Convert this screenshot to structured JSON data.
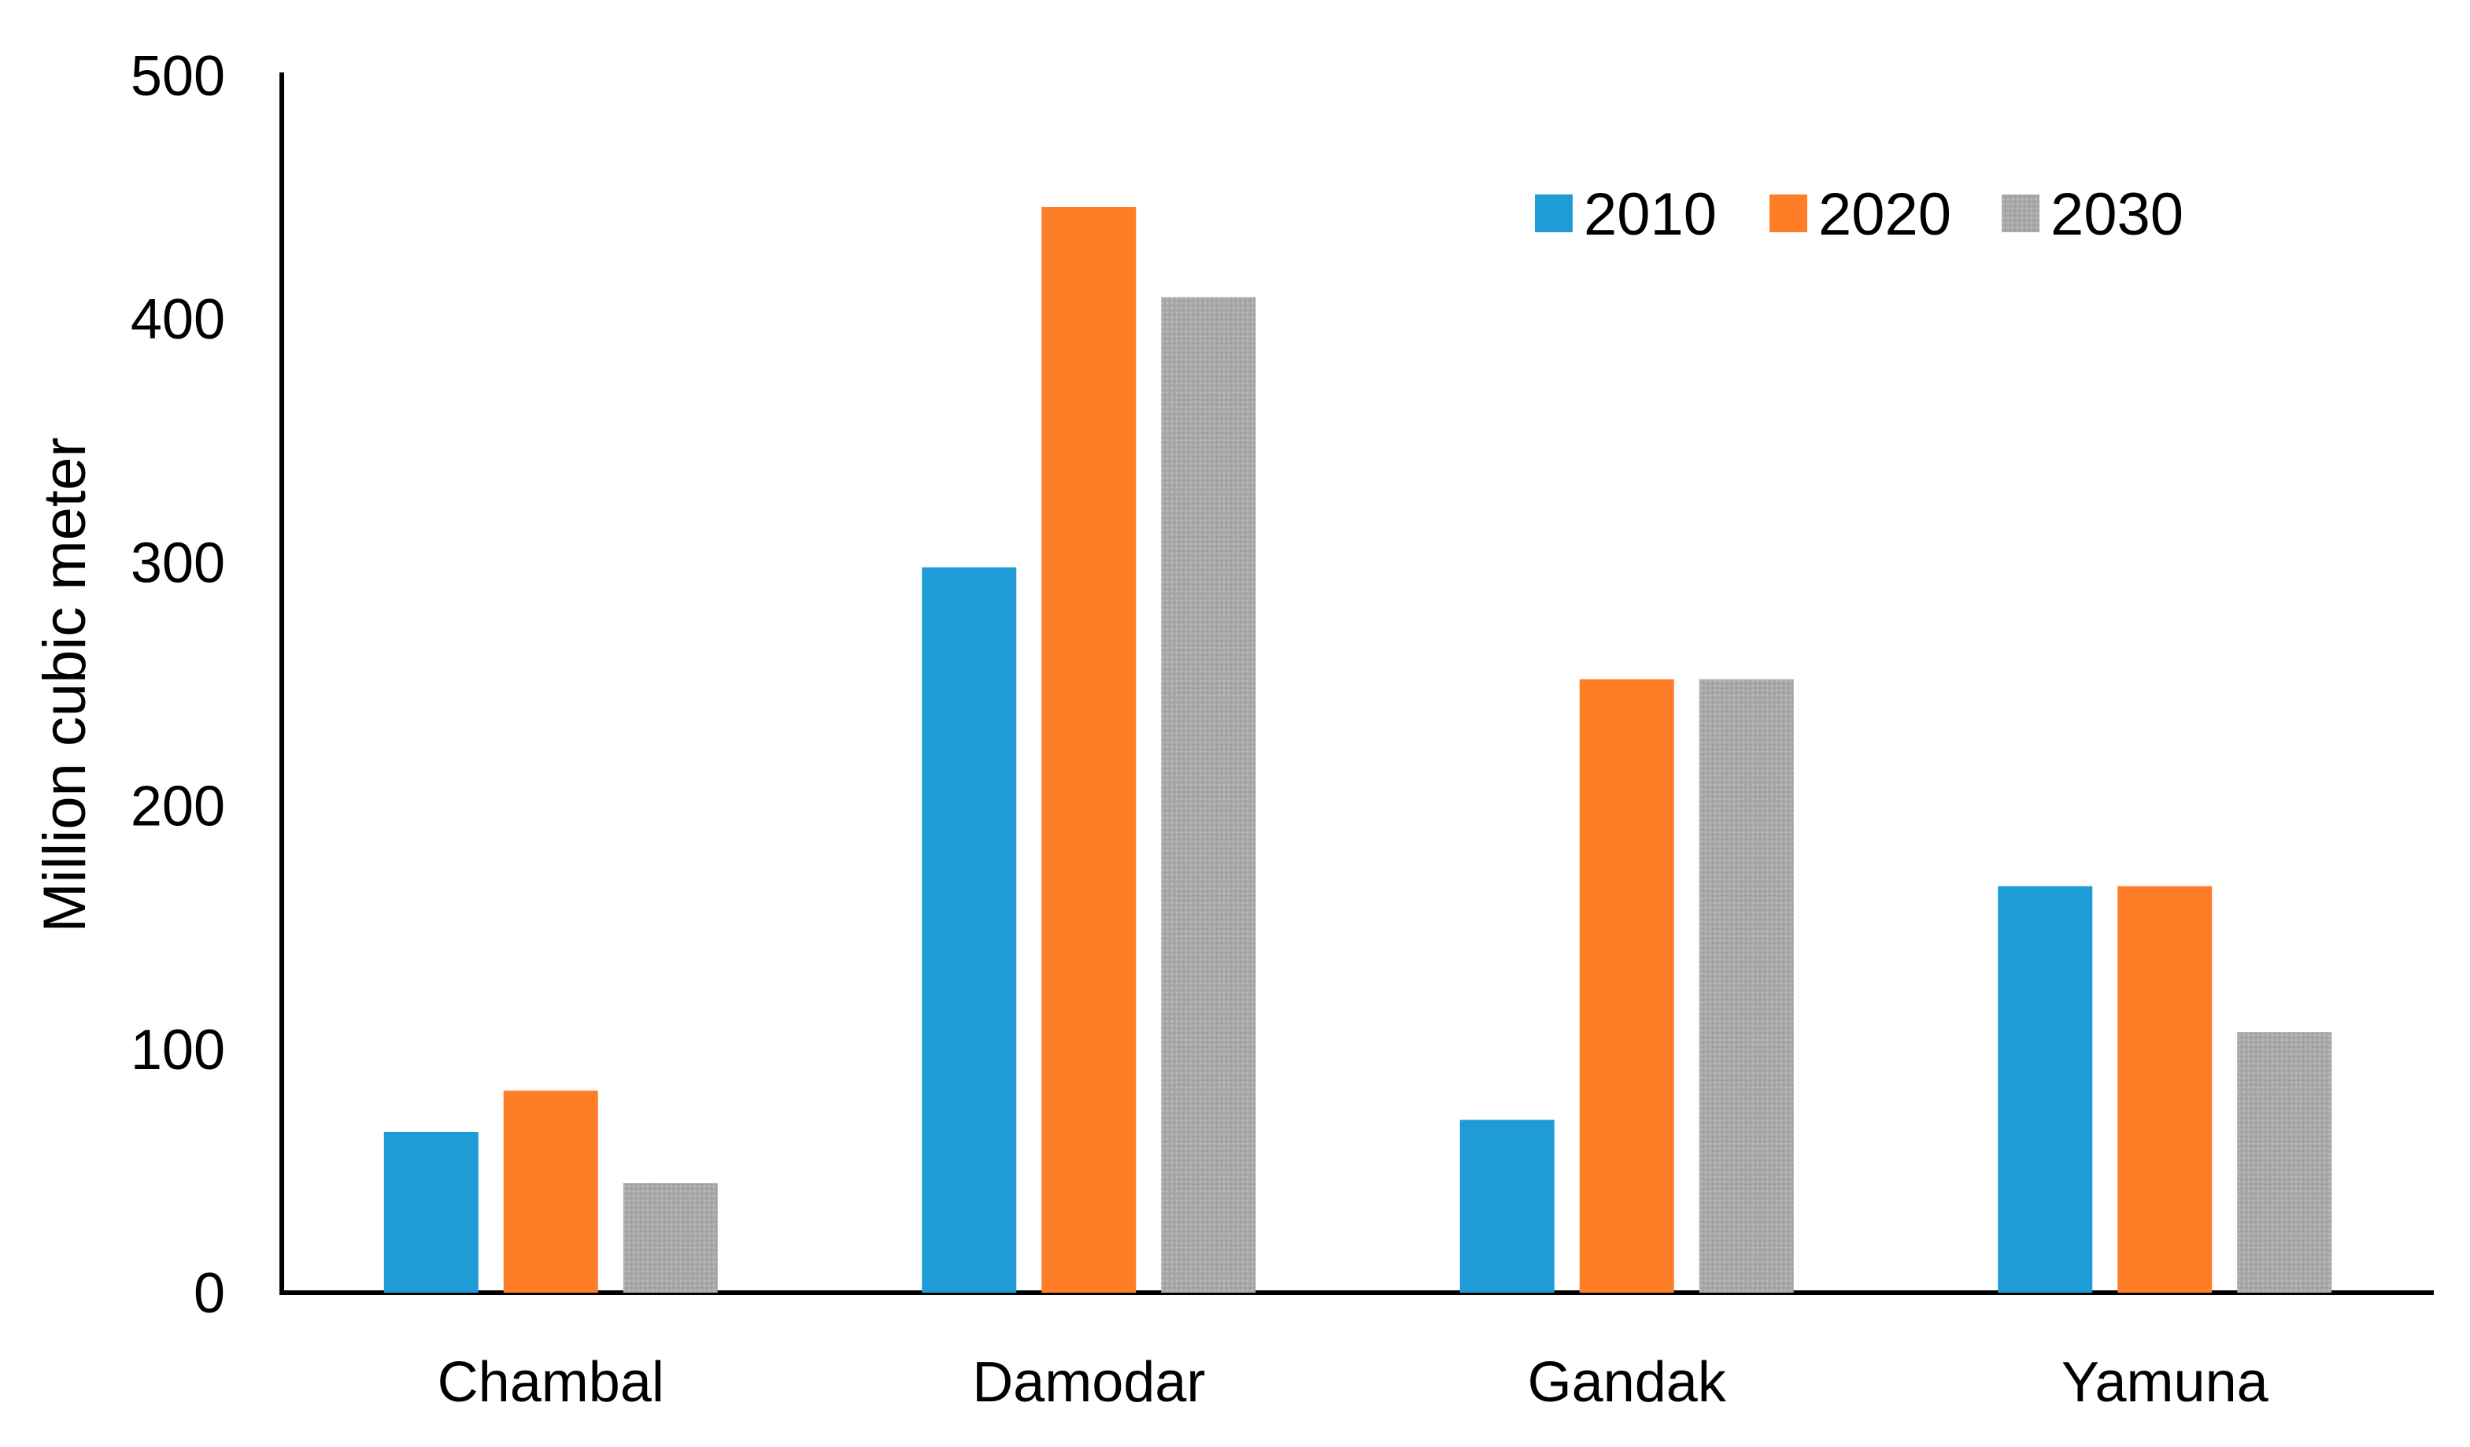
{
  "chart_data": {
    "type": "bar",
    "title": "",
    "xlabel": "",
    "ylabel": "Million cubic meter",
    "ylim": [
      0,
      500
    ],
    "yticks": [
      "0",
      "100",
      "200",
      "300",
      "400",
      "500"
    ],
    "grid": false,
    "legend_position": "top-right",
    "categories": [
      "Chambal",
      "Damodar",
      "Gandak",
      "Yamuna"
    ],
    "series": [
      {
        "name": "2010",
        "color": "#1f9bd7",
        "values": [
          66,
          298,
          71,
          167
        ]
      },
      {
        "name": "2020",
        "color": "#fd7e27",
        "values": [
          83,
          446,
          252,
          167
        ]
      },
      {
        "name": "2030",
        "color": "#a6a6a6",
        "values": [
          45,
          409,
          252,
          107
        ]
      }
    ]
  }
}
